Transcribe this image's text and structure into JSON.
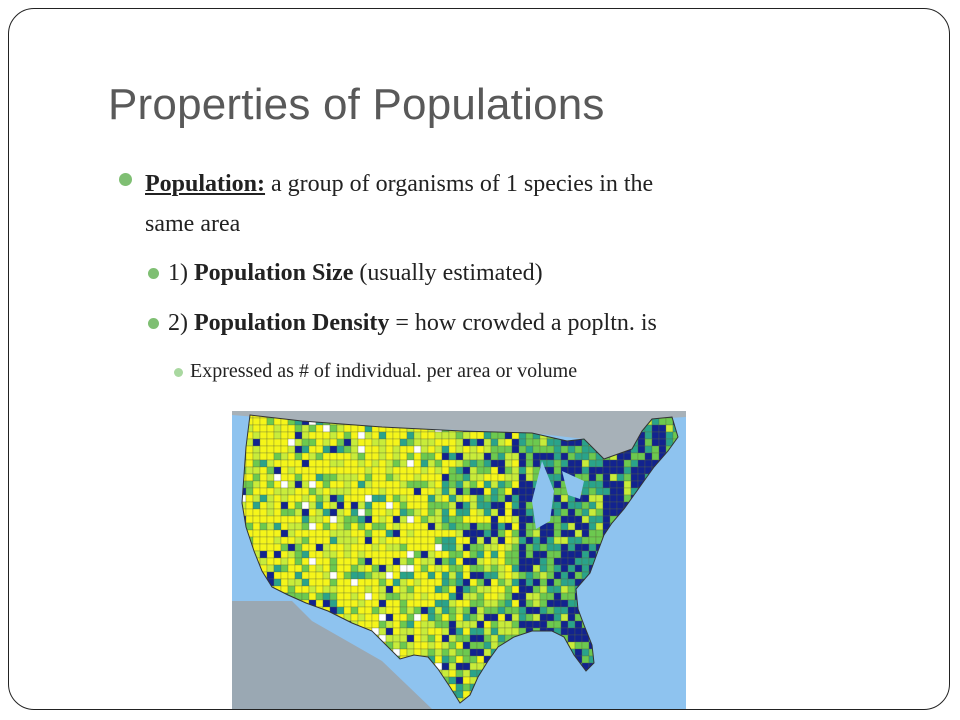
{
  "slide": {
    "title": "Properties of Populations",
    "bullets": {
      "b1_term": "Population:",
      "b1_text": " a group of organisms of 1 species in the",
      "b1_text2": "same area",
      "b2_num": "1) ",
      "b2_term": "Population Size",
      "b2_text": " (usually estimated)",
      "b3_num": "2) ",
      "b3_term": "Population Density",
      "b3_text": " = how crowded a popltn. is",
      "b4_text": "Expressed as # of individual. per area or volume"
    }
  },
  "colors": {
    "ocean": "#8ec3ef",
    "sparse": "#f5f51a",
    "low": "#c8ec3a",
    "medium": "#6cc94f",
    "high": "#2aa38a",
    "dense": "#12238f",
    "empty": "#ffffff"
  }
}
